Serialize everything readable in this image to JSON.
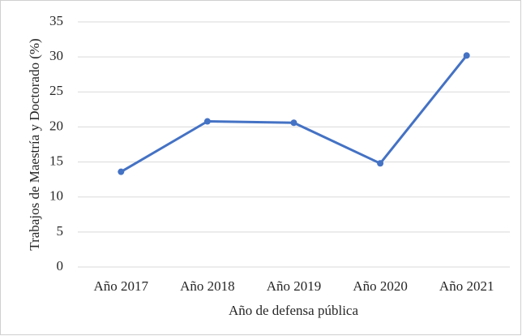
{
  "chart_data": {
    "type": "line",
    "categories": [
      "Año 2017",
      "Año 2018",
      "Año 2019",
      "Año 2020",
      "Año 2021"
    ],
    "series": [
      {
        "color": "#4472c4",
        "values": [
          13.6,
          20.8,
          20.6,
          14.8,
          30.2
        ]
      }
    ],
    "ylim": [
      0,
      35
    ],
    "yticks": [
      0,
      5,
      10,
      15,
      20,
      25,
      30,
      35
    ],
    "grid": true,
    "xlabel": "Año de defensa pública",
    "ylabel": "Trabajos de Maestría y Doctorado (%)"
  }
}
